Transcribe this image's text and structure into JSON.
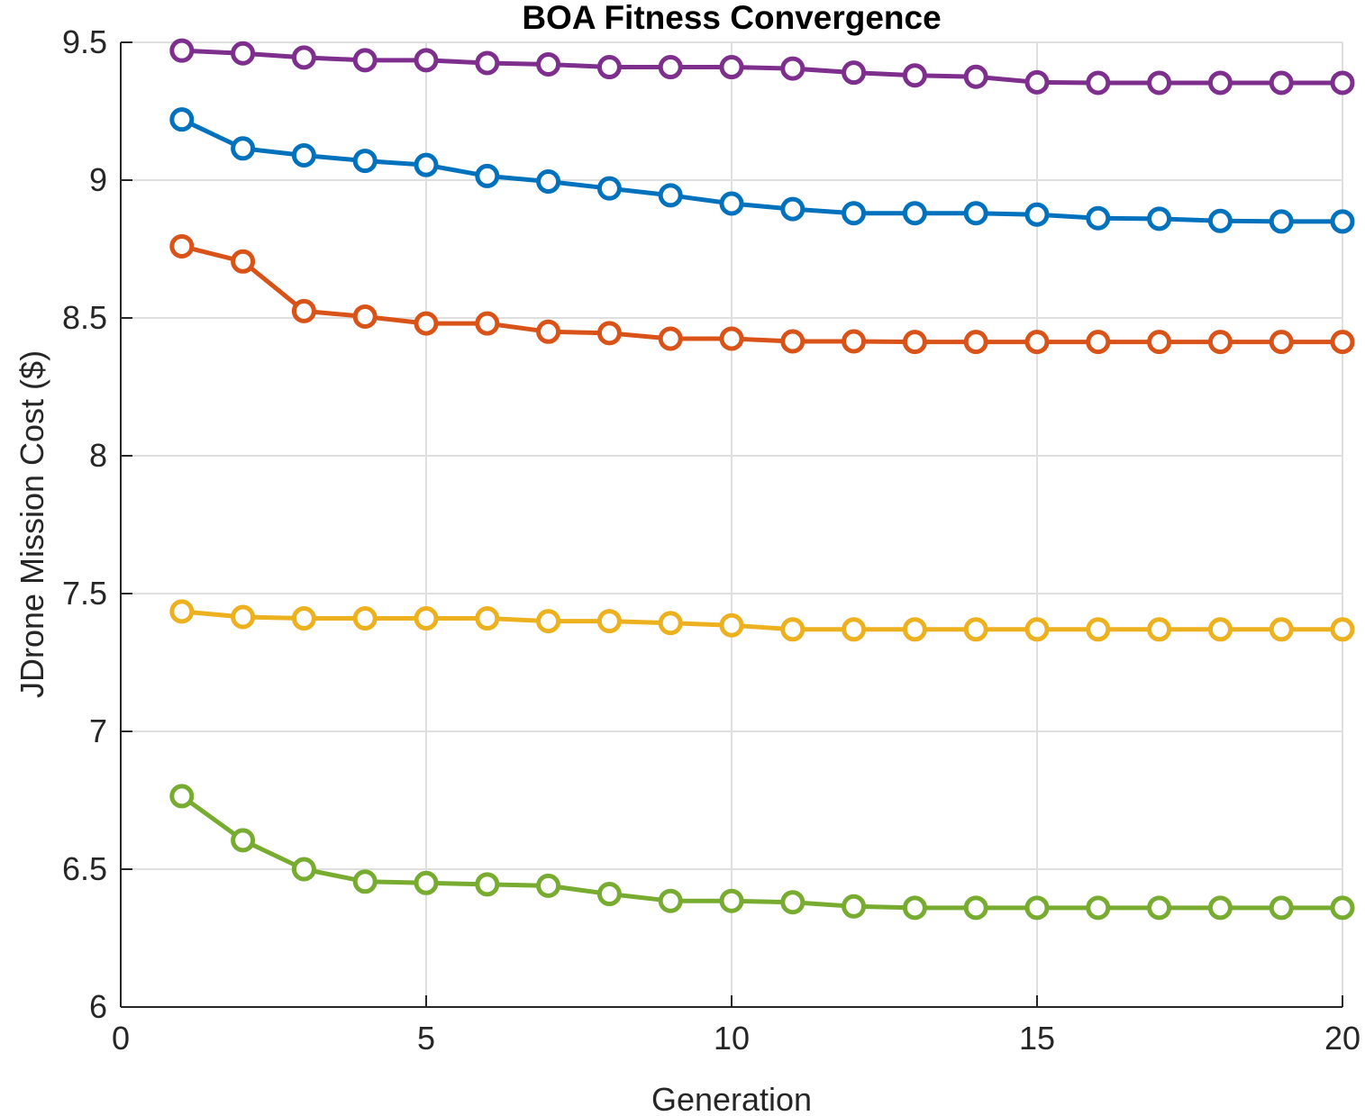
{
  "chart_data": {
    "type": "line",
    "title": "BOA Fitness Convergence",
    "xlabel": "Generation",
    "ylabel": "JDrone Mission Cost ($)",
    "xlim": [
      0,
      20
    ],
    "ylim": [
      6,
      9.5
    ],
    "xticks": [
      0,
      5,
      10,
      15,
      20
    ],
    "yticks": [
      6,
      6.5,
      7,
      7.5,
      8,
      8.5,
      9,
      9.5
    ],
    "xtick_labels": [
      "0",
      "5",
      "10",
      "15",
      "20"
    ],
    "ytick_labels": [
      "6",
      "6.5",
      "7",
      "7.5",
      "8",
      "8.5",
      "9",
      "9.5"
    ],
    "grid": true,
    "marker": "circle",
    "x": [
      1,
      2,
      3,
      4,
      5,
      6,
      7,
      8,
      9,
      10,
      11,
      12,
      13,
      14,
      15,
      16,
      17,
      18,
      19,
      20
    ],
    "series": [
      {
        "color": "#7E2F8E",
        "values": [
          9.47,
          9.46,
          9.445,
          9.435,
          9.435,
          9.425,
          9.42,
          9.41,
          9.41,
          9.41,
          9.405,
          9.39,
          9.38,
          9.375,
          9.355,
          9.353,
          9.353,
          9.353,
          9.353,
          9.353
        ]
      },
      {
        "color": "#0072BD",
        "values": [
          9.22,
          9.115,
          9.09,
          9.07,
          9.055,
          9.015,
          8.995,
          8.97,
          8.945,
          8.915,
          8.895,
          8.88,
          8.88,
          8.88,
          8.875,
          8.862,
          8.86,
          8.852,
          8.85,
          8.85
        ]
      },
      {
        "color": "#D95319",
        "values": [
          8.76,
          8.705,
          8.525,
          8.505,
          8.48,
          8.48,
          8.45,
          8.445,
          8.425,
          8.425,
          8.415,
          8.415,
          8.413,
          8.413,
          8.413,
          8.413,
          8.413,
          8.413,
          8.413,
          8.413
        ]
      },
      {
        "color": "#EDB120",
        "values": [
          7.435,
          7.415,
          7.41,
          7.41,
          7.41,
          7.41,
          7.4,
          7.4,
          7.393,
          7.385,
          7.37,
          7.37,
          7.37,
          7.37,
          7.37,
          7.37,
          7.37,
          7.37,
          7.37,
          7.37
        ]
      },
      {
        "color": "#77AC30",
        "values": [
          6.765,
          6.605,
          6.5,
          6.455,
          6.45,
          6.445,
          6.44,
          6.41,
          6.385,
          6.385,
          6.38,
          6.365,
          6.36,
          6.36,
          6.36,
          6.36,
          6.36,
          6.36,
          6.36,
          6.36
        ]
      }
    ]
  }
}
